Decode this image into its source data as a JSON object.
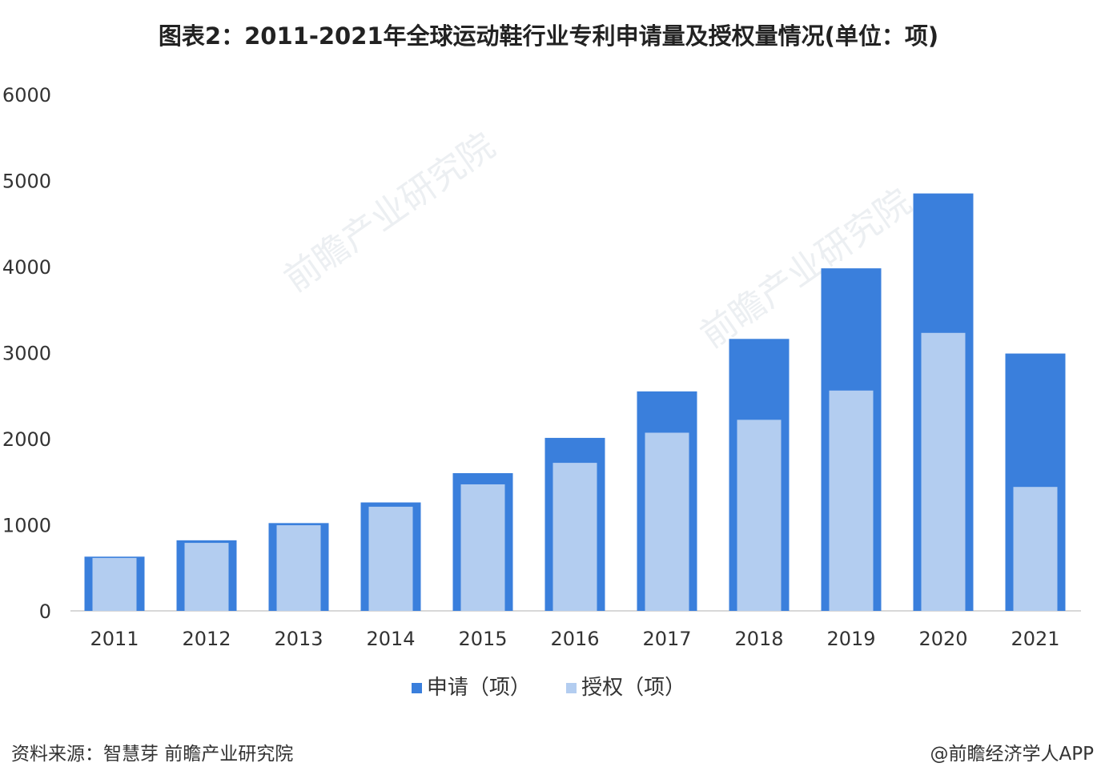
{
  "title": "图表2：2011-2021年全球运动鞋行业专利申请量及授权量情况(单位：项)",
  "chart_data": {
    "type": "bar",
    "title": "图表2：2011-2021年全球运动鞋行业专利申请量及授权量情况(单位：项)",
    "xlabel": "",
    "ylabel": "",
    "ylim": [
      0,
      6000
    ],
    "yticks": [
      0,
      1000,
      2000,
      3000,
      4000,
      5000,
      6000
    ],
    "grid": false,
    "legend": "bottom",
    "categories": [
      "2011",
      "2012",
      "2013",
      "2014",
      "2015",
      "2016",
      "2017",
      "2018",
      "2019",
      "2020",
      "2021"
    ],
    "series": [
      {
        "name": "申请（项）",
        "color": "#3a7fdc",
        "values": [
          630,
          820,
          1020,
          1260,
          1600,
          2010,
          2550,
          3160,
          3980,
          4850,
          2990
        ]
      },
      {
        "name": "授权（项）",
        "color": "#b3cdf0",
        "values": [
          615,
          790,
          995,
          1210,
          1470,
          1720,
          2070,
          2220,
          2560,
          3230,
          1440
        ]
      }
    ]
  },
  "footer": {
    "source": "资料来源：智慧芽 前瞻产业研究院",
    "credit": "@前瞻经济学人APP"
  },
  "watermark": "前瞻产业研究院"
}
